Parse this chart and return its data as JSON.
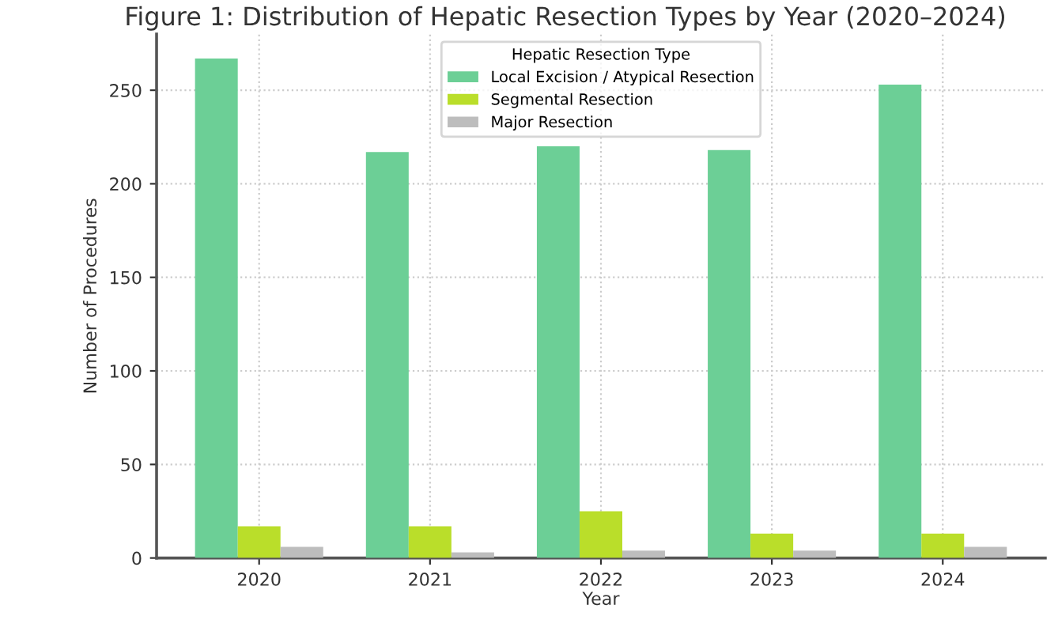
{
  "chart_data": {
    "type": "bar",
    "title": "Figure 1: Distribution of Hepatic Resection Types by Year (2020–2024)",
    "xlabel": "Year",
    "ylabel": "Number of Procedures",
    "legend_title": "Hepatic Resection Type",
    "categories": [
      "2020",
      "2021",
      "2022",
      "2023",
      "2024"
    ],
    "series": [
      {
        "name": "Local Excision / Atypical Resection",
        "color": "#6ccf96",
        "values": [
          267,
          217,
          220,
          218,
          253
        ]
      },
      {
        "name": "Segmental Resection",
        "color": "#bade2a",
        "values": [
          17,
          17,
          25,
          13,
          13
        ]
      },
      {
        "name": "Major Resection",
        "color": "#bdbdbd",
        "values": [
          6,
          3,
          4,
          4,
          6
        ]
      }
    ],
    "ylim": [
      0,
      280
    ],
    "yticks": [
      0,
      50,
      100,
      150,
      200,
      250
    ],
    "grid": true,
    "legend": "top"
  }
}
